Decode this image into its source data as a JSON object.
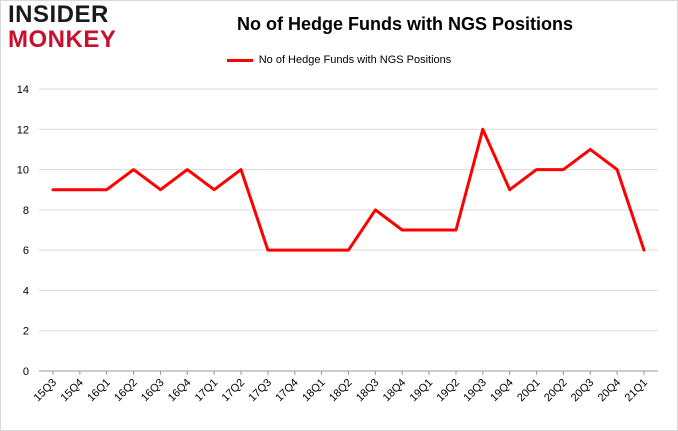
{
  "logo": {
    "line1": "INSIDER",
    "line2": "MONKEY"
  },
  "chart_data": {
    "type": "line",
    "title": "No of Hedge Funds with NGS Positions",
    "xlabel": "",
    "ylabel": "",
    "categories": [
      "15Q3",
      "15Q4",
      "16Q1",
      "16Q2",
      "16Q3",
      "16Q4",
      "17Q1",
      "17Q2",
      "17Q3",
      "17Q4",
      "18Q1",
      "18Q2",
      "18Q3",
      "18Q4",
      "19Q1",
      "19Q2",
      "19Q3",
      "19Q4",
      "20Q1",
      "20Q2",
      "20Q3",
      "20Q4",
      "21Q1"
    ],
    "series": [
      {
        "name": "No of Hedge Funds with NGS Positions",
        "color": "#ff0000",
        "values": [
          9,
          9,
          9,
          10,
          9,
          10,
          9,
          10,
          6,
          6,
          6,
          6,
          8,
          7,
          7,
          7,
          12,
          9,
          10,
          10,
          11,
          10,
          6
        ]
      }
    ],
    "ylim": [
      0,
      14
    ],
    "yticks": [
      0,
      2,
      4,
      6,
      8,
      10,
      12,
      14
    ],
    "grid": true,
    "legend": "top"
  }
}
